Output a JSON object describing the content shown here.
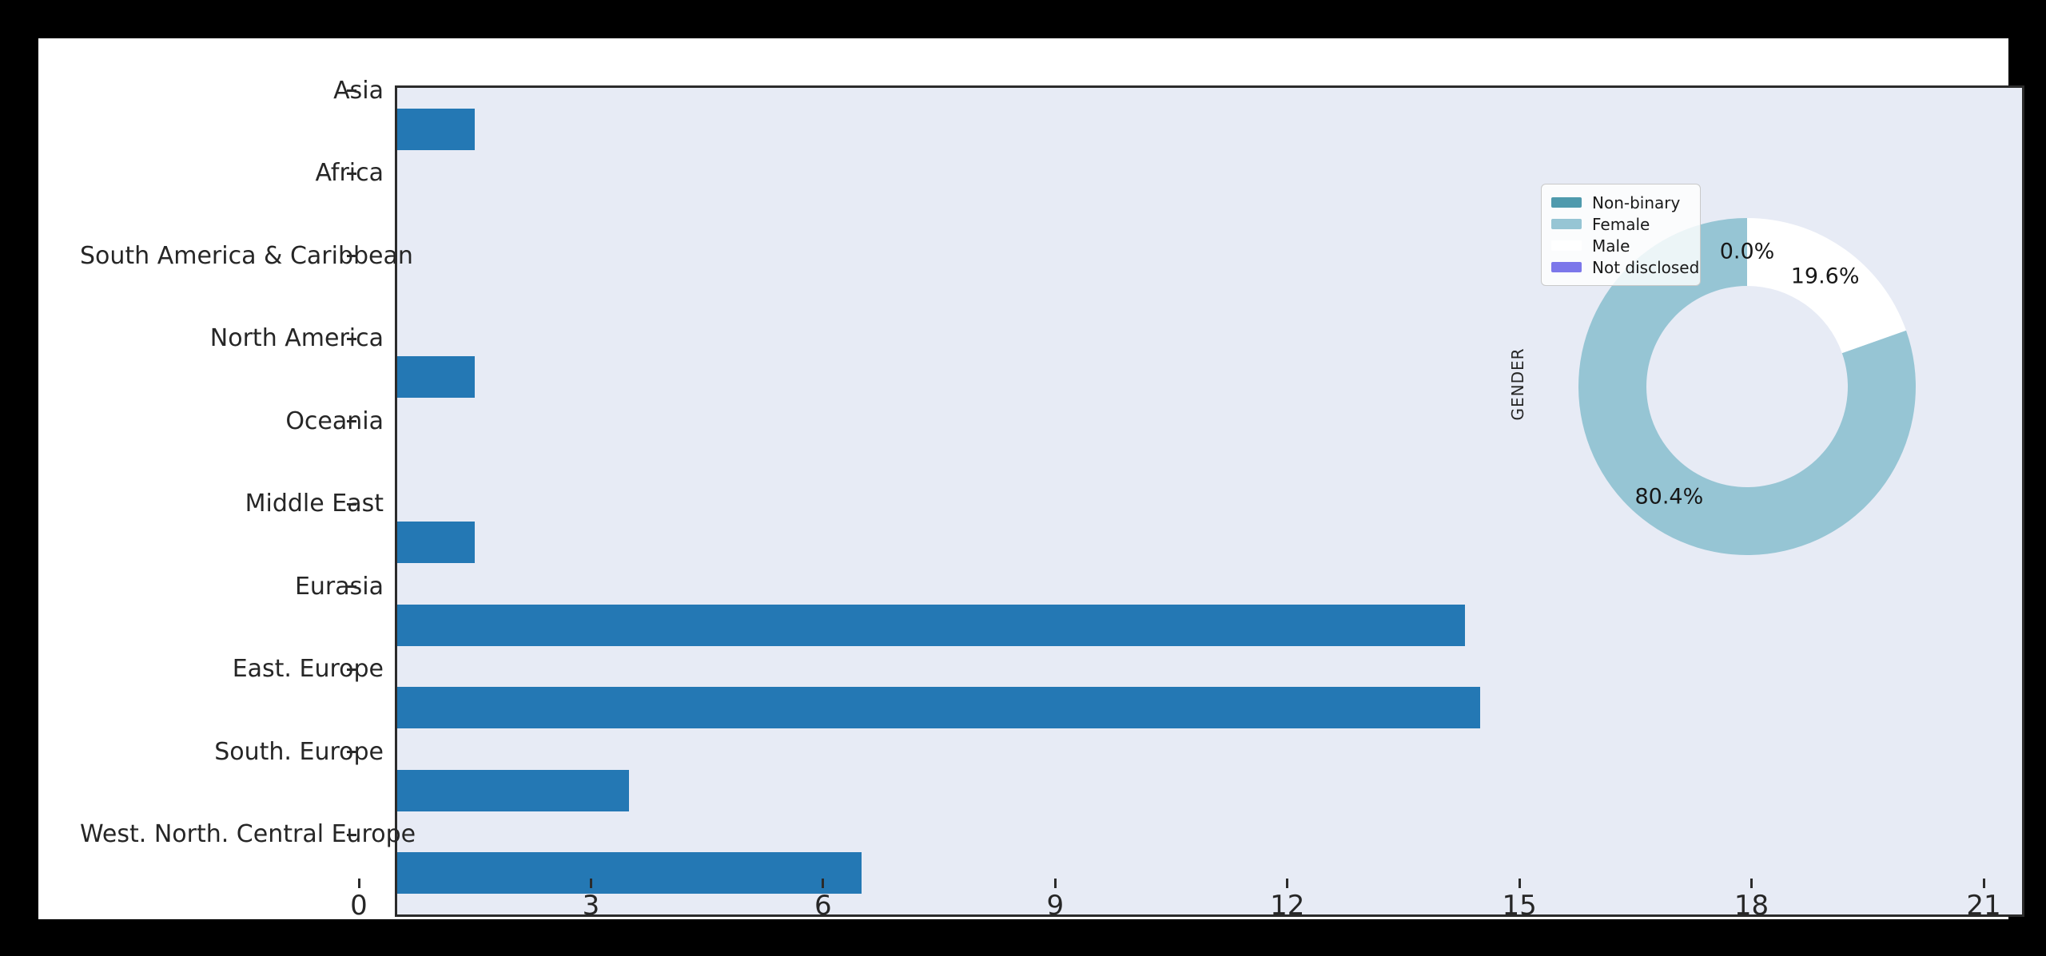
{
  "page": {
    "background_color": "#000000",
    "figure_color": "#ffffff",
    "axes_background_color": "#e7ebf5",
    "spine_color": "#2b2b2b",
    "text_color": "#262626"
  },
  "chart_data": [
    {
      "type": "bar",
      "orientation": "horizontal",
      "title": "",
      "xlabel": "",
      "ylabel": "",
      "categories": [
        "Asia",
        "Africa",
        "South America & Caribbean",
        "North America",
        "Oceania",
        "Middle East",
        "Eurasia",
        "East. Europe",
        "South. Europe",
        "West. North. Central Europe"
      ],
      "values": [
        1,
        0,
        0,
        1,
        0,
        1,
        13.8,
        14,
        3,
        6
      ],
      "xlim": [
        0,
        21
      ],
      "xticks": [
        0,
        3,
        6,
        9,
        12,
        15,
        18,
        21
      ],
      "bar_color": "#2478b4",
      "grid": false,
      "legend_position": "none"
    },
    {
      "type": "pie",
      "donut": true,
      "ylabel": "GENDER",
      "labels": [
        "Non-binary",
        "Female",
        "Male",
        "Not disclosed"
      ],
      "values_pct": [
        0.0,
        80.4,
        19.6,
        0.0
      ],
      "pct_labels": [
        "0.0%",
        "80.4%",
        "19.6%",
        "0.0%"
      ],
      "colors": [
        "#4f9aad",
        "#96c5d4",
        "#ffffff",
        "#7c77ea"
      ],
      "startangle": 90,
      "counterclockwise": true,
      "legend_position": "upper left",
      "legend_entries": [
        "Non-binary",
        "Female",
        "Male",
        "Not disclosed"
      ]
    }
  ]
}
